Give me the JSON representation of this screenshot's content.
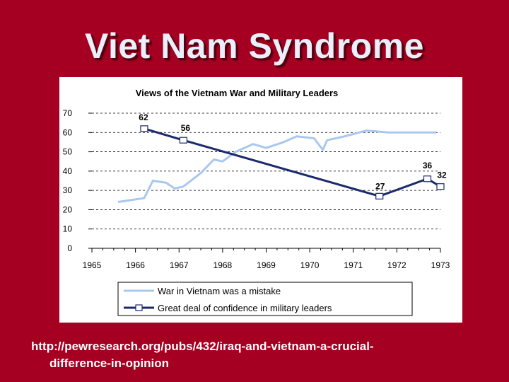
{
  "slide": {
    "title": "Viet Nam Syndrome",
    "source_line1": "http://pewresearch.org/pubs/432/iraq-and-vietnam-a-crucial-",
    "source_line2": "difference-in-opinion"
  },
  "colors": {
    "background": "#a50021",
    "series_mistake": "#a9c8ee",
    "series_confidence": "#1b2a6b"
  },
  "chart_data": {
    "type": "line",
    "title": "Views of the Vietnam War and Military Leaders",
    "xlabel": "",
    "ylabel": "",
    "xlim": [
      1965,
      1973
    ],
    "ylim": [
      0,
      70
    ],
    "x_ticks": [
      "1965",
      "1966",
      "1967",
      "1968",
      "1969",
      "1970",
      "1971",
      "1972",
      "1973"
    ],
    "y_ticks": [
      "0",
      "10",
      "20",
      "30",
      "40",
      "50",
      "60",
      "70"
    ],
    "grid": "horizontal dashed",
    "legend_position": "bottom",
    "series": [
      {
        "name": "War in Vietnam was a mistake",
        "style": "line",
        "points": [
          [
            1965.6,
            24
          ],
          [
            1966.2,
            26
          ],
          [
            1966.4,
            35
          ],
          [
            1966.7,
            34
          ],
          [
            1966.9,
            31
          ],
          [
            1967.1,
            32
          ],
          [
            1967.5,
            39
          ],
          [
            1967.8,
            46
          ],
          [
            1968.0,
            45
          ],
          [
            1968.3,
            50
          ],
          [
            1968.7,
            54
          ],
          [
            1969.0,
            52
          ],
          [
            1969.4,
            55
          ],
          [
            1969.7,
            58
          ],
          [
            1970.1,
            57
          ],
          [
            1970.3,
            51
          ],
          [
            1970.4,
            56
          ],
          [
            1970.8,
            58
          ],
          [
            1971.3,
            61
          ],
          [
            1971.8,
            60
          ],
          [
            1972.5,
            60
          ],
          [
            1972.9,
            60
          ]
        ]
      },
      {
        "name": "Great deal of confidence in military leaders",
        "style": "line-with-markers",
        "points": [
          [
            1966.2,
            62
          ],
          [
            1967.1,
            56
          ],
          [
            1971.6,
            27
          ],
          [
            1972.7,
            36
          ],
          [
            1973.0,
            32
          ]
        ],
        "labels": [
          "62",
          "56",
          "27",
          "36",
          "32"
        ]
      }
    ]
  }
}
